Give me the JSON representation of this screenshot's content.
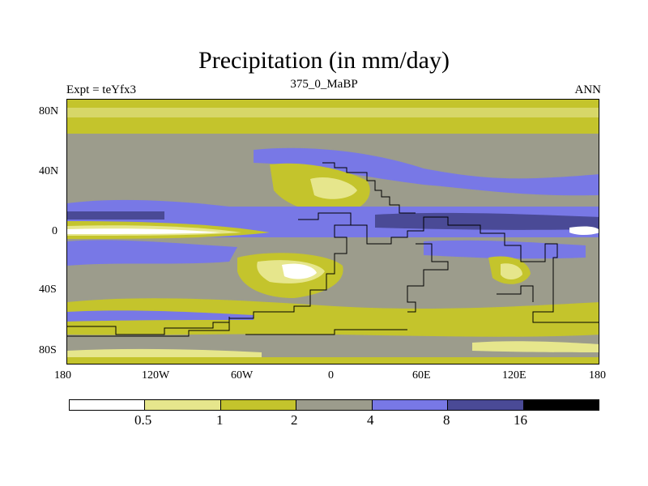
{
  "title": "Precipitation (in mm/day)",
  "experiment_label": "Expt = teYfx3",
  "center_label": "375_0_MaBP",
  "season_label": "ANN",
  "y_axis": {
    "labels": [
      "80N",
      "40N",
      "0",
      "40S",
      "80S"
    ],
    "values": [
      80,
      40,
      0,
      -40,
      -80
    ],
    "range": [
      -90,
      90
    ]
  },
  "x_axis": {
    "labels": [
      "180",
      "120W",
      "60W",
      "0",
      "60E",
      "120E",
      "180"
    ],
    "values": [
      -180,
      -120,
      -60,
      0,
      60,
      120,
      180
    ],
    "range": [
      -180,
      180
    ]
  },
  "colorbar": {
    "levels": [
      "0.5",
      "1",
      "2",
      "4",
      "8",
      "16"
    ],
    "colors": [
      "#ffffff",
      "#e6e68c",
      "#c4c42c",
      "#9c9c8c",
      "#7878e6",
      "#4a4a96",
      "#000000"
    ]
  },
  "palette": {
    "white": "#ffffff",
    "pale": "#e6e68c",
    "olive": "#c4c42c",
    "gray": "#9c9c8c",
    "blue": "#7878e6",
    "navy": "#4a4a96"
  }
}
